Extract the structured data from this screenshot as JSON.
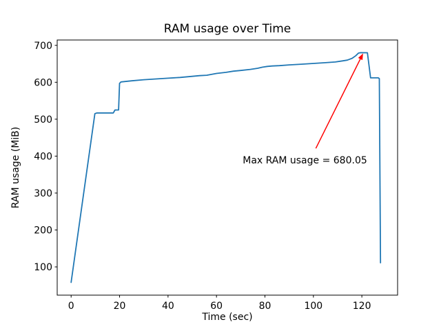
{
  "chart_data": {
    "type": "line",
    "title": "RAM usage over Time",
    "xlabel": "Time (sec)",
    "ylabel": "RAM usage (MiB)",
    "xlim": [
      -5.75,
      134.75
    ],
    "ylim": [
      23.5,
      714.5
    ],
    "xticks": [
      0,
      20,
      40,
      60,
      80,
      100,
      120
    ],
    "yticks": [
      100,
      200,
      300,
      400,
      500,
      600,
      700
    ],
    "grid": false,
    "legend": "none",
    "max_value": 680.05,
    "series": [
      {
        "name": "RAM usage (MiB)",
        "color": "#1f77b4",
        "x": [
          0,
          9.8,
          10.6,
          17.4,
          18.1,
          19.6,
          20.0,
          20.6,
          25,
          30,
          35,
          40,
          45,
          50,
          53,
          56,
          60,
          64,
          67,
          70,
          74,
          77,
          79,
          81,
          83,
          86,
          90,
          95,
          100,
          105,
          109,
          112,
          114,
          116,
          117.5,
          118.6,
          119.5,
          122.3,
          123.6,
          126.8,
          127.2,
          127.7
        ],
        "y": [
          58,
          515,
          517,
          517,
          525,
          525,
          597,
          601,
          604,
          607,
          609,
          611,
          613,
          616,
          618,
          619,
          624,
          627,
          630,
          632,
          635,
          638,
          641,
          643,
          644,
          645,
          647,
          649,
          651,
          653,
          655,
          658,
          660,
          665,
          672,
          679,
          680.05,
          680,
          612,
          612,
          610,
          111
        ]
      }
    ],
    "annotation": {
      "text": "Max RAM usage = 680.05",
      "color": "#ff0000",
      "text_xy": [
        96.5,
        390
      ],
      "arrow_tail_xy": [
        101,
        421
      ],
      "arrow_tip_xy": [
        120.5,
        678
      ]
    }
  },
  "colors": {
    "background": "#ffffff",
    "axis": "#000000",
    "text": "#000000"
  }
}
